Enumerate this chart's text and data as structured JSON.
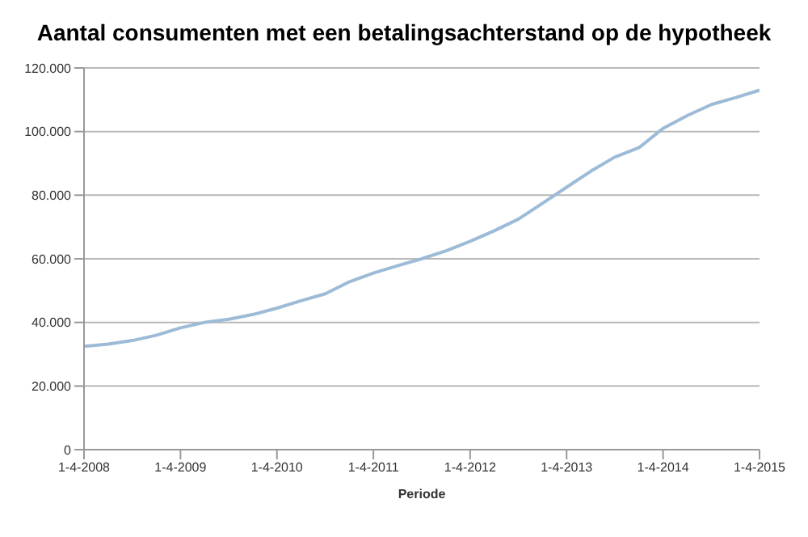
{
  "chart_data": {
    "type": "line",
    "title": "Aantal consumenten met een betalingsachterstand op de hypotheek",
    "xlabel": "Periode",
    "x": [
      "2008-04-01",
      "2008-07-01",
      "2008-10-01",
      "2009-01-01",
      "2009-04-01",
      "2009-07-01",
      "2009-10-01",
      "2010-01-01",
      "2010-04-01",
      "2010-07-01",
      "2010-10-01",
      "2011-01-01",
      "2011-04-01",
      "2011-07-01",
      "2011-10-01",
      "2012-01-01",
      "2012-04-01",
      "2012-07-01",
      "2012-10-01",
      "2013-01-01",
      "2013-04-01",
      "2013-07-01",
      "2013-10-01",
      "2014-01-01",
      "2014-04-01",
      "2014-07-01",
      "2014-10-01",
      "2015-01-01",
      "2015-04-01"
    ],
    "series": [
      {
        "color": "#9dbbd7",
        "values": [
          32500,
          33200,
          34300,
          36000,
          38300,
          40000,
          41000,
          42500,
          44500,
          46800,
          49000,
          52800,
          55500,
          57800,
          60000,
          62500,
          65500,
          68800,
          72500,
          77500,
          82500,
          87500,
          92000,
          95000,
          101000,
          105000,
          108500,
          110700,
          113000
        ]
      }
    ],
    "xlim": [
      "2008-04-01",
      "2015-04-01"
    ],
    "xticks": [
      {
        "value": "2008-04-01",
        "label": "1-4-2008"
      },
      {
        "value": "2009-04-01",
        "label": "1-4-2009"
      },
      {
        "value": "2010-04-01",
        "label": "1-4-2010"
      },
      {
        "value": "2011-04-01",
        "label": "1-4-2011"
      },
      {
        "value": "2012-04-01",
        "label": "1-4-2012"
      },
      {
        "value": "2013-04-01",
        "label": "1-4-2013"
      },
      {
        "value": "2014-04-01",
        "label": "1-4-2014"
      },
      {
        "value": "2015-04-01",
        "label": "1-4-2015"
      }
    ],
    "ylim": [
      0,
      120000
    ],
    "yticks": [
      {
        "value": 0,
        "label": "0"
      },
      {
        "value": 20000,
        "label": "20.000"
      },
      {
        "value": 40000,
        "label": "40.000"
      },
      {
        "value": 60000,
        "label": "60.000"
      },
      {
        "value": 80000,
        "label": "80.000"
      },
      {
        "value": 100000,
        "label": "100.000"
      },
      {
        "value": 120000,
        "label": "120.000"
      }
    ],
    "grid": "y",
    "marker": "none",
    "line_style": "solid"
  }
}
